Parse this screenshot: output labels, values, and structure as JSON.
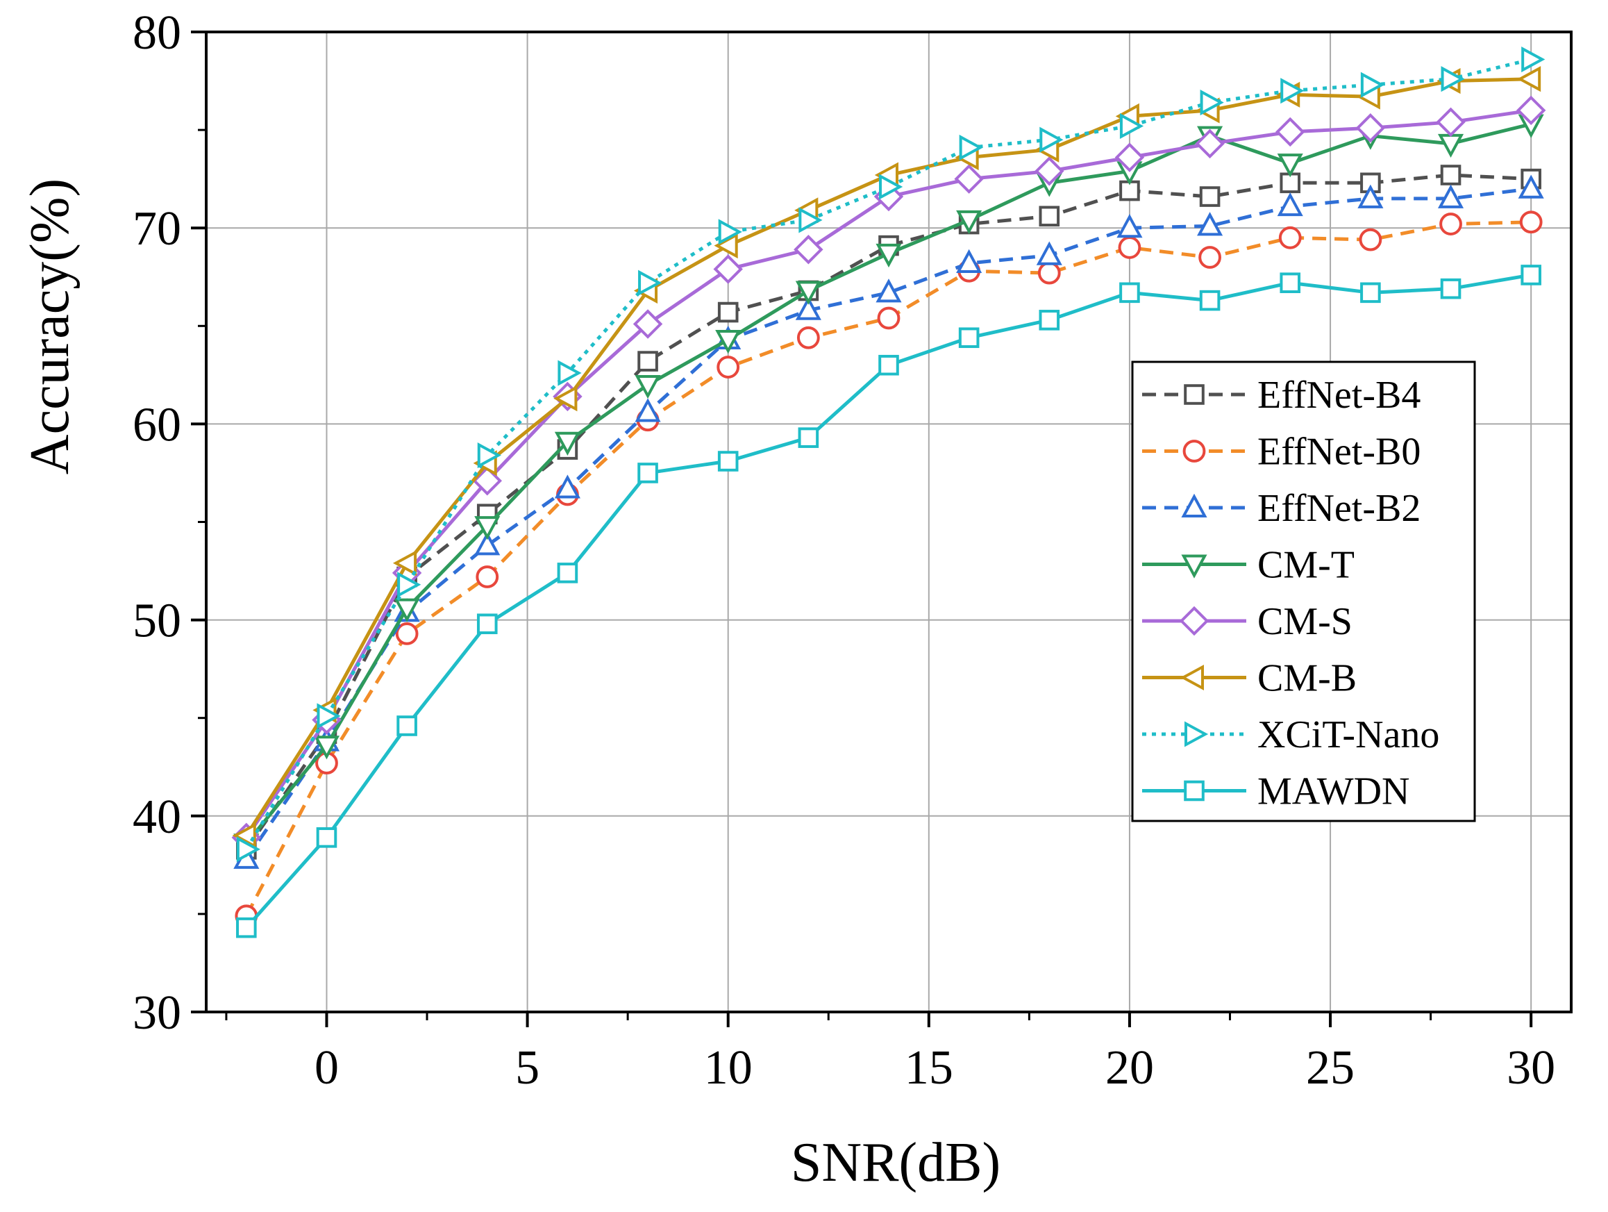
{
  "chart_data": {
    "type": "line",
    "title": "",
    "xlabel": "SNR(dB)",
    "ylabel": "Accuracy(%)",
    "xlim": [
      -3,
      31
    ],
    "ylim": [
      30,
      80
    ],
    "xticks": [
      0,
      5,
      10,
      15,
      20,
      25,
      30
    ],
    "xtick_labels": [
      "0",
      "5",
      "10",
      "15",
      "20",
      "25",
      "30"
    ],
    "yticks": [
      30,
      40,
      50,
      60,
      70,
      80
    ],
    "ytick_labels": [
      "30",
      "40",
      "50",
      "60",
      "70",
      "80"
    ],
    "grid": true,
    "legend_position": "right",
    "x": [
      -2,
      0,
      2,
      4,
      6,
      8,
      10,
      12,
      14,
      16,
      18,
      20,
      22,
      24,
      26,
      28,
      30
    ],
    "series": [
      {
        "name": "EffNet-B4",
        "color": "#505050",
        "dash": "dashed",
        "marker": "square",
        "values": [
          38.3,
          44.2,
          52.2,
          55.4,
          58.7,
          63.2,
          65.7,
          66.8,
          69.1,
          70.2,
          70.6,
          71.9,
          71.6,
          72.3,
          72.3,
          72.7,
          72.5
        ]
      },
      {
        "name": "EffNet-B0",
        "color": "#f28c28",
        "marker_color": "#e8473c",
        "dash": "dashed",
        "marker": "circle",
        "values": [
          34.9,
          42.7,
          49.3,
          52.2,
          56.4,
          60.2,
          62.9,
          64.4,
          65.4,
          67.8,
          67.7,
          69.0,
          68.5,
          69.5,
          69.4,
          70.2,
          70.3
        ]
      },
      {
        "name": "EffNet-B2",
        "color": "#2f6fd6",
        "dash": "dashed",
        "marker": "triangle-up",
        "values": [
          37.8,
          43.8,
          50.4,
          53.8,
          56.7,
          60.6,
          64.3,
          65.8,
          66.7,
          68.2,
          68.6,
          70.0,
          70.1,
          71.1,
          71.5,
          71.5,
          72.0
        ]
      },
      {
        "name": "CM-T",
        "color": "#2e9a5c",
        "dash": "solid",
        "marker": "triangle-down",
        "values": [
          38.6,
          43.6,
          50.6,
          54.8,
          59.1,
          62.0,
          64.3,
          66.8,
          68.7,
          70.4,
          72.3,
          72.9,
          74.7,
          73.3,
          74.7,
          74.3,
          75.3
        ]
      },
      {
        "name": "CM-S",
        "color": "#a86ad8",
        "dash": "solid",
        "marker": "diamond",
        "values": [
          38.9,
          44.9,
          52.4,
          57.1,
          61.4,
          65.1,
          67.9,
          68.9,
          71.6,
          72.5,
          72.9,
          73.6,
          74.3,
          74.9,
          75.1,
          75.4,
          76.0
        ]
      },
      {
        "name": "CM-B",
        "color": "#c69314",
        "dash": "solid",
        "marker": "triangle-left",
        "values": [
          39.0,
          45.4,
          52.9,
          58.0,
          61.3,
          66.8,
          69.1,
          70.9,
          72.7,
          73.6,
          74.0,
          75.7,
          76.0,
          76.8,
          76.7,
          77.5,
          77.6
        ]
      },
      {
        "name": "XCiT-Nano",
        "color": "#1fbdc8",
        "dash": "dotted",
        "marker": "triangle-right",
        "values": [
          38.3,
          45.1,
          51.8,
          58.4,
          62.6,
          67.2,
          69.8,
          70.4,
          72.1,
          74.1,
          74.5,
          75.2,
          76.4,
          77.0,
          77.3,
          77.6,
          78.6
        ]
      },
      {
        "name": "MAWDN",
        "color": "#1fbdc8",
        "dash": "solid",
        "marker": "square",
        "values": [
          34.3,
          38.9,
          44.6,
          49.8,
          52.4,
          57.5,
          58.1,
          59.3,
          63.0,
          64.4,
          65.3,
          66.7,
          66.3,
          67.2,
          66.7,
          66.9,
          67.6
        ]
      }
    ]
  }
}
